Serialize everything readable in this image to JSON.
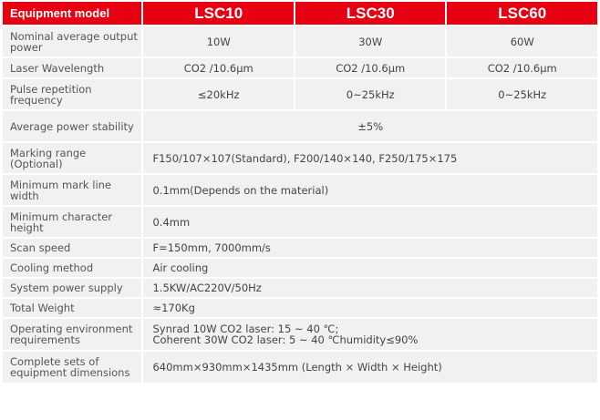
{
  "header": {
    "col0": "Equipment model",
    "models": [
      "LSC10",
      "LSC30",
      "LSC60"
    ]
  },
  "rows": [
    {
      "label": "Nominal average output power",
      "values": [
        "10W",
        "30W",
        "60W"
      ]
    },
    {
      "label": "Laser Wavelength",
      "values": [
        "CO2 /10.6μm",
        "CO2 /10.6μm",
        "CO2 /10.6μm"
      ]
    },
    {
      "label": "Pulse repetition frequency",
      "values": [
        "≤20kHz",
        "0~25kHz",
        "0~25kHz"
      ]
    },
    {
      "label": "Average power stability",
      "value": "±5%"
    },
    {
      "label": "Marking range (Optional)",
      "value": "F150/107×107(Standard), F200/140×140, F250/175×175"
    },
    {
      "label": "Minimum mark line width",
      "value": "0.1mm(Depends on the material)"
    },
    {
      "label": "Minimum character height",
      "value": "0.4mm"
    },
    {
      "label": "Scan speed",
      "value": "F=150mm, 7000mm/s"
    },
    {
      "label": "Cooling method",
      "value": "Air cooling"
    },
    {
      "label": "System power supply",
      "value": "1.5KW/AC220V/50Hz"
    },
    {
      "label": "Total Weight",
      "value": "≈170Kg"
    },
    {
      "label": "Operating environment requirements",
      "value": "Synrad 10W CO2 laser: 15 ~ 40 ℃;",
      "value2": "Coherent 30W CO2 laser: 5 ~ 40 ℃humidity≤90%"
    },
    {
      "label": "Complete sets of equipment dimensions",
      "value": "640mm×930mm×1435mm (Length × Width × Height)"
    }
  ],
  "colors": {
    "header_bg": "#e60012",
    "cell_bg": "#f1f1f1",
    "text": "#444444"
  }
}
